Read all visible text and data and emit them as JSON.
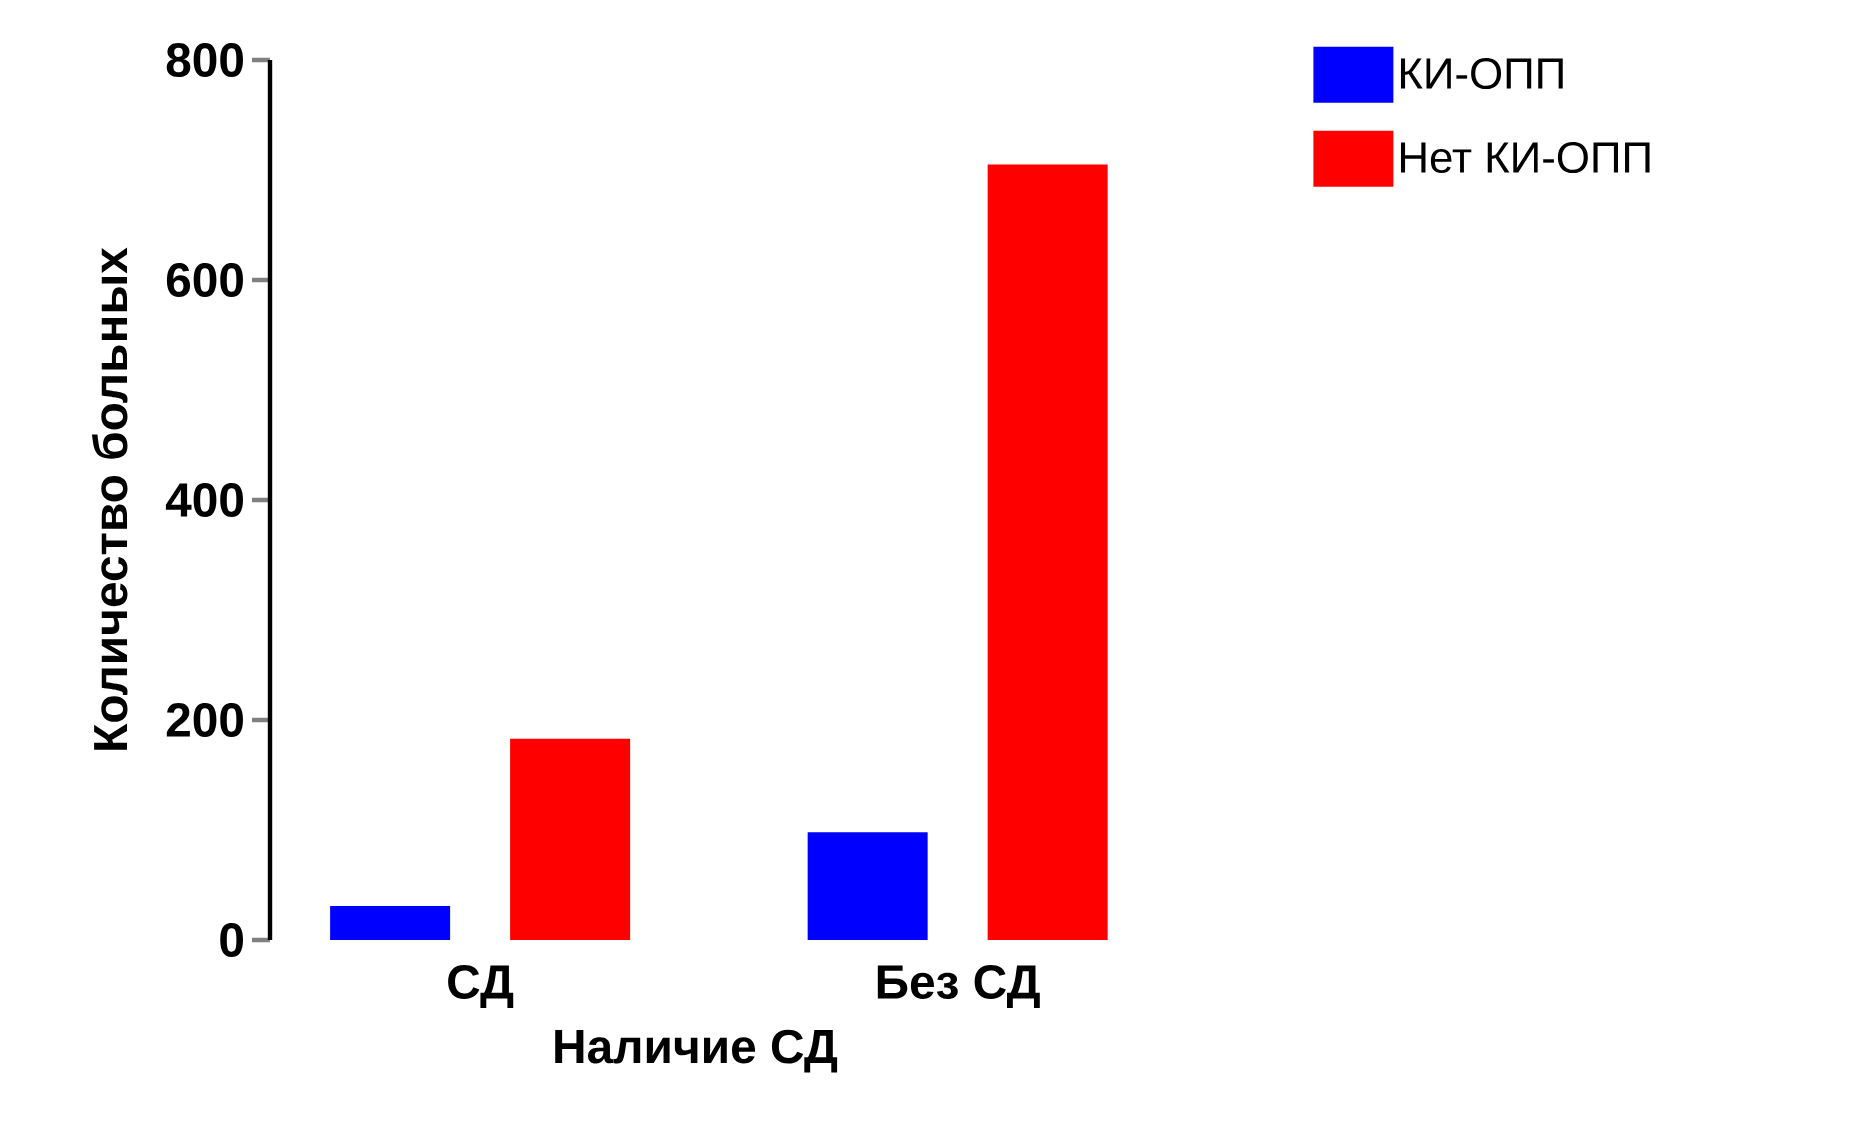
{
  "chart_data": {
    "type": "bar",
    "xlabel": "Наличие СД",
    "ylabel": "Количество больных",
    "categories": [
      "СД",
      "Без СД"
    ],
    "series": [
      {
        "name": "КИ-ОПП",
        "color": "#0000ff",
        "values": [
          31,
          98
        ]
      },
      {
        "name": "Нет КИ-ОПП",
        "color": "#ff0000",
        "values": [
          183,
          705
        ]
      }
    ],
    "ylim": [
      0,
      800
    ],
    "yticks": [
      0,
      200,
      400,
      600,
      800
    ],
    "legend": "top right"
  }
}
